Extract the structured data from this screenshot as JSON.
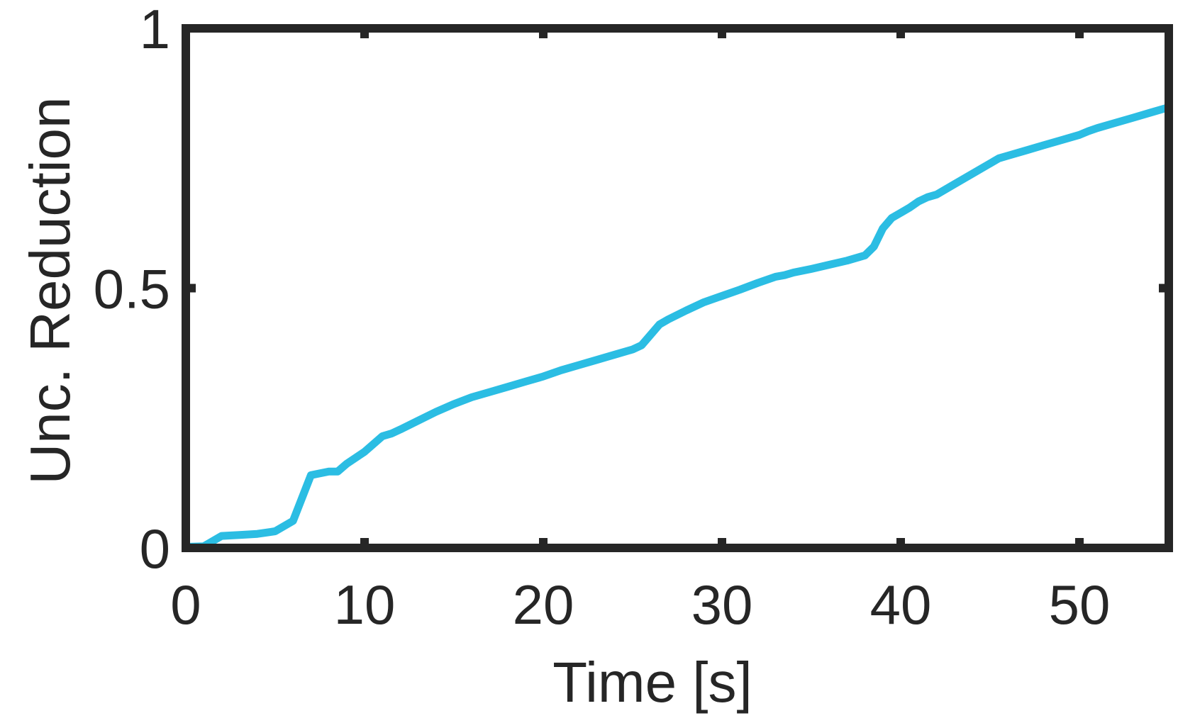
{
  "chart_data": {
    "type": "line",
    "title": "",
    "xlabel": "Time [s]",
    "ylabel": "Unc. Reduction",
    "xlim": [
      0,
      55
    ],
    "ylim": [
      0,
      1
    ],
    "xticks": [
      0,
      10,
      20,
      30,
      40,
      50
    ],
    "yticks": [
      0,
      0.5,
      1
    ],
    "xtick_labels": [
      "0",
      "10",
      "20",
      "30",
      "40",
      "50"
    ],
    "ytick_labels": [
      "0",
      "0.5",
      "1"
    ],
    "grid": false,
    "box": true,
    "line_color": "#2BBDE3",
    "axis_color": "#262626",
    "series": [
      {
        "x": [
          0,
          1,
          2,
          3,
          4,
          5,
          6,
          7,
          8,
          8.5,
          9,
          10,
          11,
          11.5,
          12,
          13,
          14,
          15,
          16,
          17,
          18,
          19,
          20,
          21,
          22,
          23,
          24,
          25,
          25.5,
          26,
          26.5,
          27,
          28,
          29,
          30,
          31,
          32,
          33,
          33.5,
          34,
          35,
          36,
          37,
          38,
          38.5,
          39,
          39.5,
          40,
          40.5,
          41,
          41.5,
          42,
          43,
          44,
          45,
          45.5,
          46,
          47,
          48,
          49,
          50,
          50.5,
          51,
          52,
          53,
          54,
          55
        ],
        "y": [
          0.002,
          0.003,
          0.023,
          0.025,
          0.027,
          0.032,
          0.052,
          0.14,
          0.147,
          0.147,
          0.162,
          0.185,
          0.215,
          0.22,
          0.228,
          0.245,
          0.262,
          0.277,
          0.29,
          0.3,
          0.31,
          0.32,
          0.33,
          0.342,
          0.352,
          0.362,
          0.372,
          0.382,
          0.39,
          0.41,
          0.43,
          0.44,
          0.457,
          0.473,
          0.485,
          0.497,
          0.51,
          0.522,
          0.525,
          0.53,
          0.537,
          0.545,
          0.553,
          0.563,
          0.58,
          0.615,
          0.635,
          0.645,
          0.655,
          0.667,
          0.675,
          0.68,
          0.7,
          0.72,
          0.74,
          0.75,
          0.755,
          0.765,
          0.775,
          0.785,
          0.795,
          0.802,
          0.808,
          0.818,
          0.828,
          0.838,
          0.848
        ]
      }
    ]
  }
}
